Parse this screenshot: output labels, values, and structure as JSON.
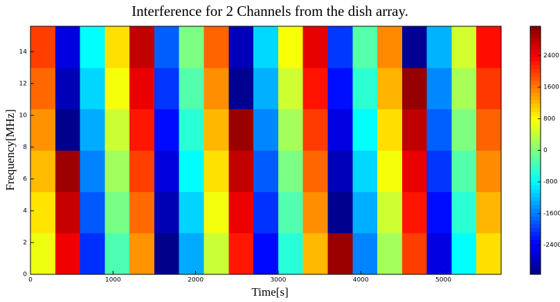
{
  "chart_data": {
    "type": "heatmap",
    "title": "Interference for 2 Channels from the dish array.",
    "xlabel": "Time[s]",
    "ylabel": "Frequency[MHz]",
    "x": [
      150,
      450,
      750,
      1050,
      1350,
      1650,
      1950,
      2250,
      2550,
      2850,
      3150,
      3450,
      3750,
      4050,
      4350,
      4650,
      4950,
      5250,
      5550
    ],
    "y": [
      1.3,
      3.9,
      6.5,
      9.1,
      11.7,
      14.3
    ],
    "z": [
      [
        686,
        2447,
        -2072,
        -311,
        1450,
        -3070,
        -1309,
        452,
        2213,
        -2307,
        -546,
        1215,
        2976,
        -1544,
        217,
        1978,
        -2542,
        -781,
        980
      ],
      [
        944,
        2705,
        -1814,
        -53,
        1708,
        -2812,
        -1051,
        710,
        2471,
        -2049,
        -288,
        1473,
        -3046,
        -1286,
        475,
        2236,
        -2284,
        -523,
        1238
      ],
      [
        1202,
        2963,
        -1556,
        205,
        1966,
        -2554,
        -793,
        968,
        2729,
        -1791,
        -30,
        1731,
        -2788,
        -1028,
        733,
        2494,
        -2026,
        -265,
        1496
      ],
      [
        1460,
        -3059,
        -1298,
        463,
        2224,
        -2296,
        -535,
        1226,
        2987,
        -1533,
        228,
        1989,
        -2530,
        -770,
        991,
        2752,
        -1768,
        -7,
        1754
      ],
      [
        1718,
        -2801,
        -1040,
        721,
        2482,
        -2038,
        -277,
        1484,
        -3035,
        -1275,
        486,
        2247,
        -2272,
        -512,
        1249,
        3010,
        -1510,
        251,
        2012
      ],
      [
        1976,
        -2543,
        -782,
        979,
        2740,
        -1780,
        -19,
        1742,
        -2777,
        -1017,
        744,
        2505,
        -2014,
        -254,
        1507,
        -3012,
        -1252,
        509,
        2270
      ]
    ],
    "xlim": [
      0,
      5700
    ],
    "ylim": [
      0,
      15.6
    ],
    "xticks": [
      0,
      1000,
      2000,
      3000,
      4000,
      5000
    ],
    "yticks": [
      0,
      2,
      4,
      6,
      8,
      10,
      12,
      14
    ],
    "zlim": [
      -3142,
      3142
    ],
    "zticks": [
      -2400,
      -1600,
      -800,
      0,
      800,
      1600,
      2400
    ],
    "colormap": "jet"
  }
}
